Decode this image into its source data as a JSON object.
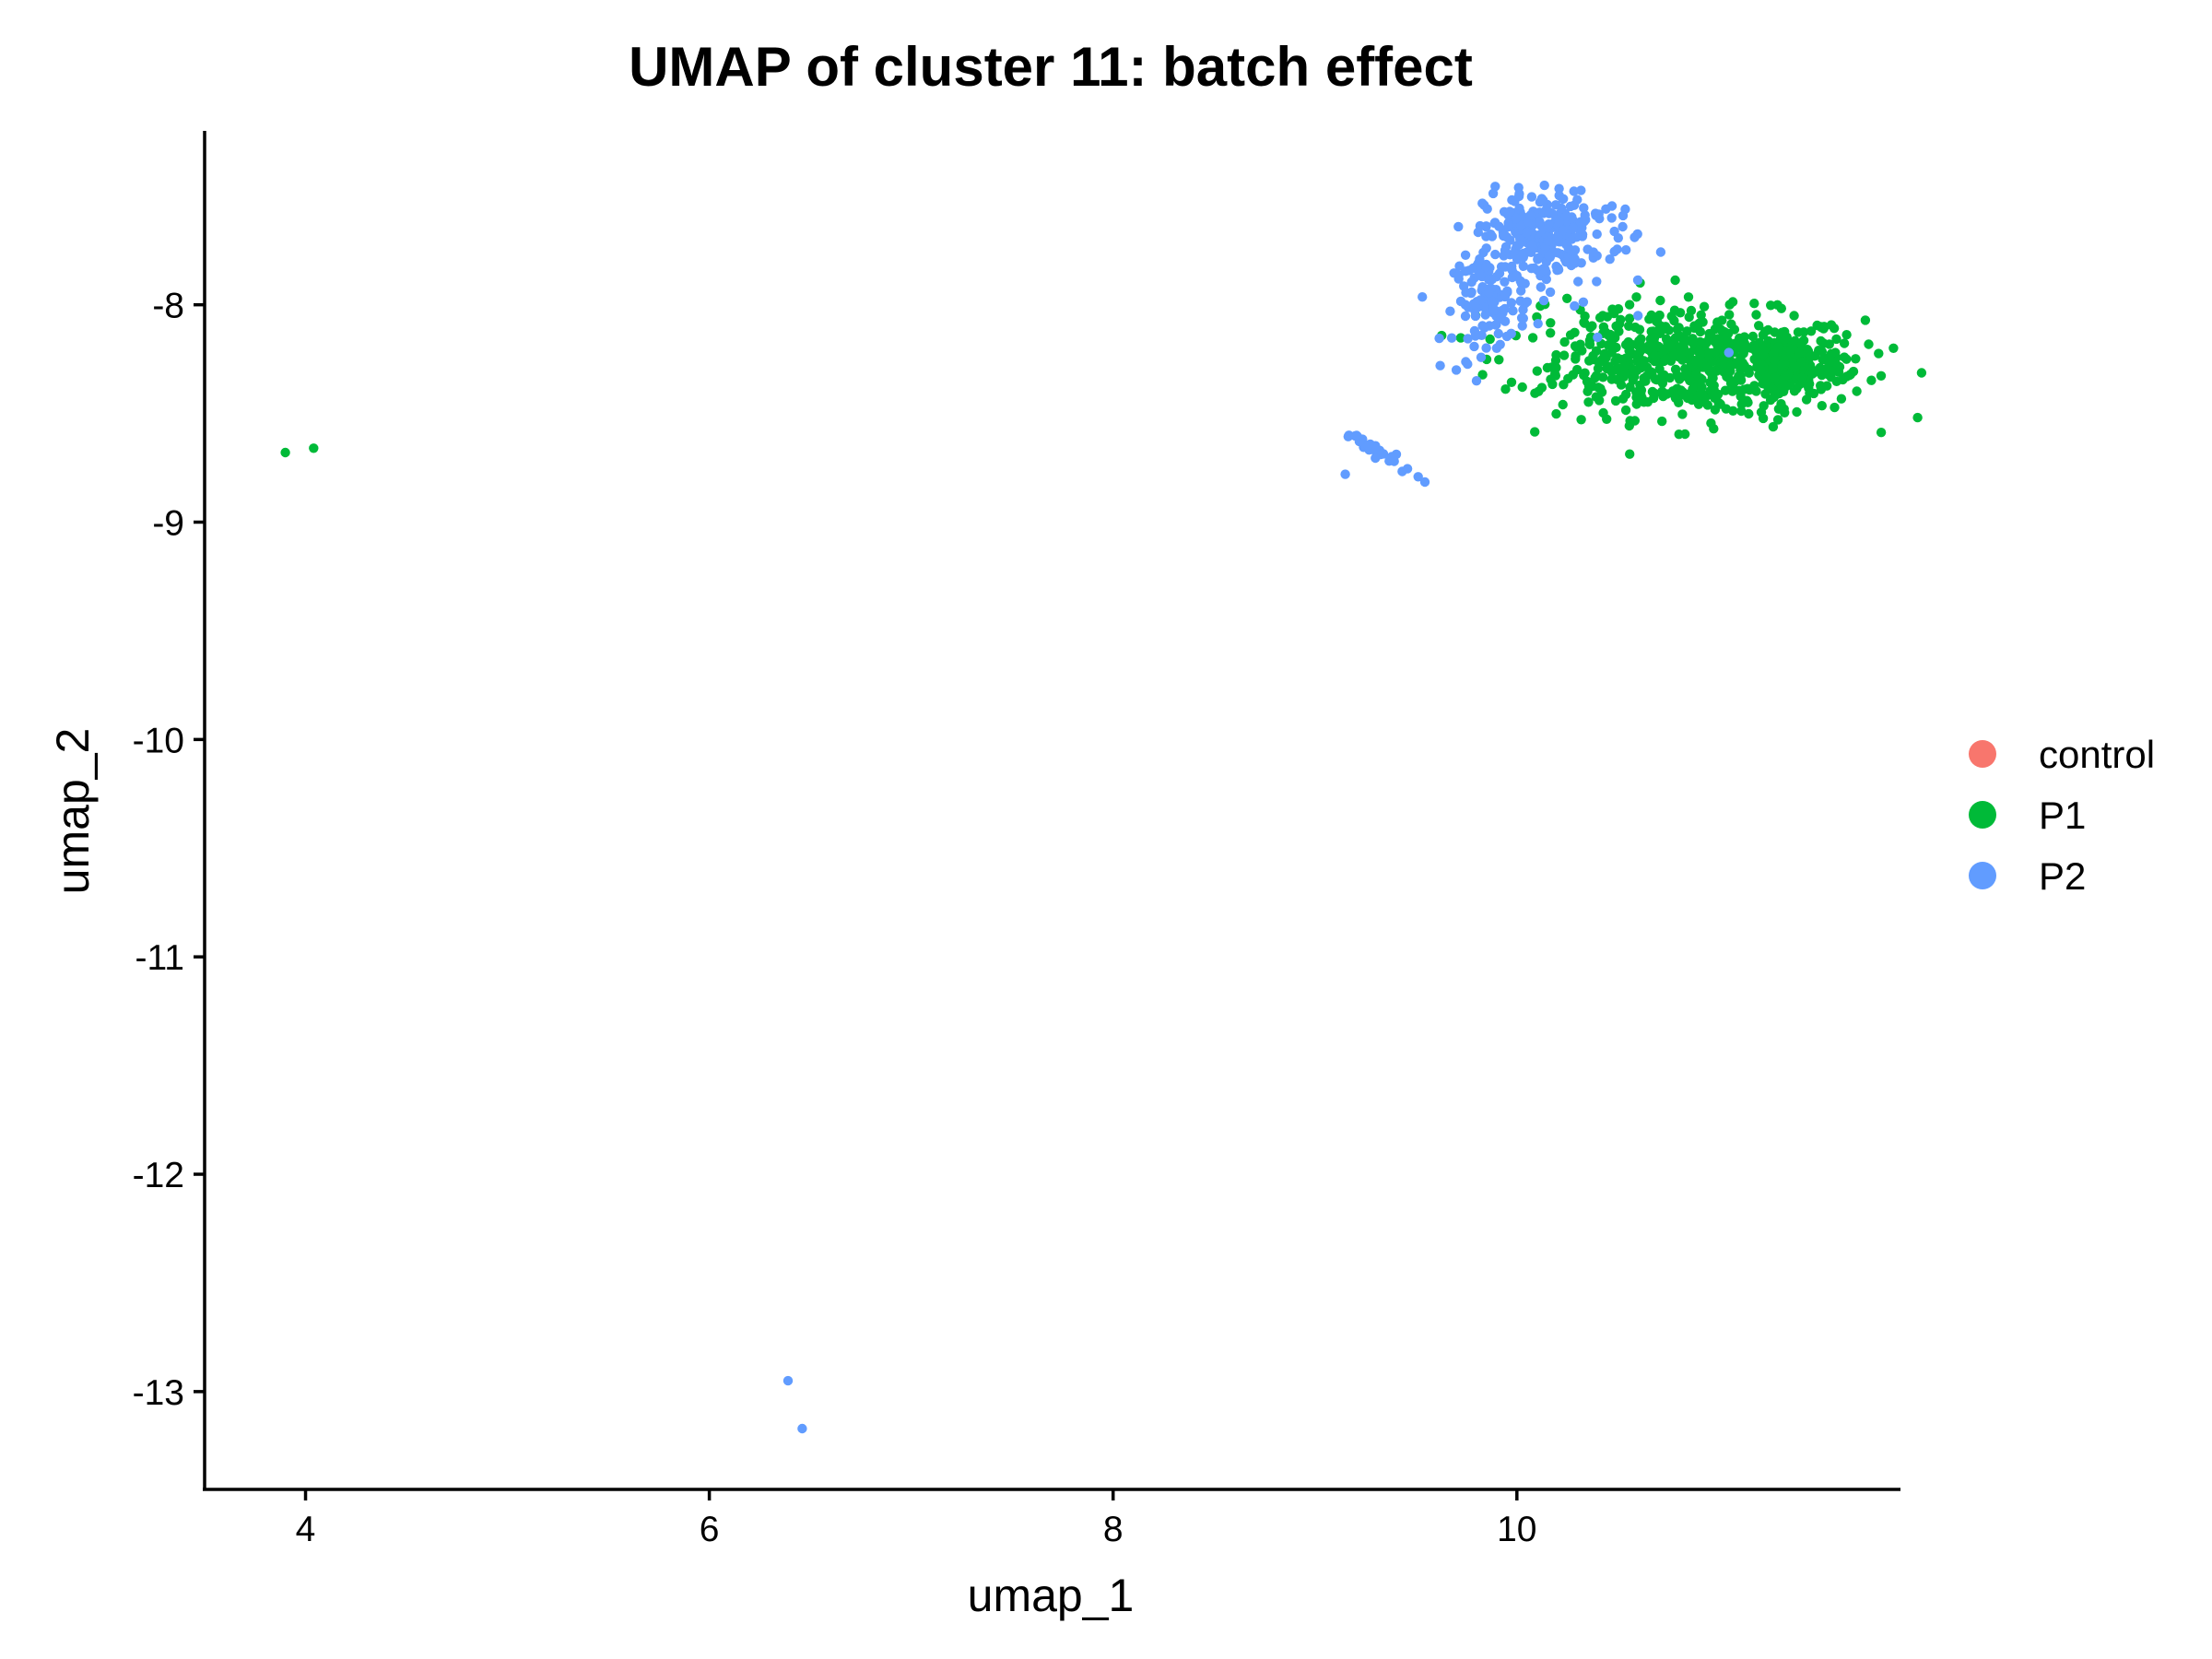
{
  "chart_data": {
    "type": "scatter",
    "title": "UMAP of cluster 11: batch effect",
    "xlabel": "umap_1",
    "ylabel": "umap_2",
    "xlim": [
      3.5,
      11.9
    ],
    "ylim": [
      -13.45,
      -7.2
    ],
    "xticks": [
      4,
      6,
      8,
      10
    ],
    "yticks": [
      -8,
      -9,
      -10,
      -11,
      -12,
      -13
    ],
    "xtick_labels": [
      "4",
      "6",
      "8",
      "10"
    ],
    "ytick_labels": [
      "-8",
      "-9",
      "-10",
      "-11",
      "-12",
      "-13"
    ],
    "grid": false,
    "legend_position": "right",
    "series": [
      {
        "name": "control",
        "color": "#F8766D",
        "points": []
      },
      {
        "name": "P1",
        "color": "#00BA38",
        "points": [
          [
            3.9,
            -8.68
          ],
          [
            4.04,
            -8.66
          ]
        ],
        "clusters": [
          {
            "cx": 10.95,
            "cy": -8.28,
            "sx": 0.38,
            "sy": 0.12,
            "n": 520
          },
          {
            "cx": 11.35,
            "cy": -8.28,
            "sx": 0.14,
            "sy": 0.07,
            "n": 160
          },
          {
            "cx": 10.45,
            "cy": -8.18,
            "sx": 0.25,
            "sy": 0.12,
            "n": 110
          }
        ]
      },
      {
        "name": "P2",
        "color": "#619CFF",
        "points": [
          [
            6.39,
            -12.95
          ],
          [
            6.46,
            -13.17
          ],
          [
            9.15,
            -8.78
          ],
          [
            9.7,
            -8.3
          ],
          [
            9.8,
            -8.35
          ],
          [
            9.9,
            -8.2
          ],
          [
            11.05,
            -8.22
          ],
          [
            10.4,
            -8.15
          ],
          [
            10.6,
            -8.05
          ],
          [
            9.62,
            -8.28
          ]
        ],
        "clusters": [
          {
            "cx": 10.1,
            "cy": -7.68,
            "sx": 0.13,
            "sy": 0.1,
            "n": 230
          },
          {
            "cx": 9.87,
            "cy": -7.98,
            "sx": 0.09,
            "sy": 0.1,
            "n": 120
          },
          {
            "cx": 10.3,
            "cy": -7.72,
            "sx": 0.15,
            "sy": 0.12,
            "n": 60
          },
          {
            "cx": 9.3,
            "cy": -8.67,
            "sx": 0.09,
            "sy": 0.05,
            "n": 30,
            "linear": true
          }
        ]
      }
    ]
  }
}
